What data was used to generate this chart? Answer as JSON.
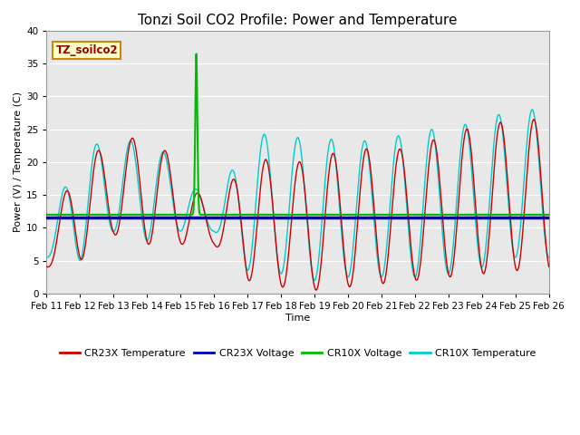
{
  "title": "Tonzi Soil CO2 Profile: Power and Temperature",
  "xlabel": "Time",
  "ylabel": "Power (V) / Temperature (C)",
  "ylim": [
    0,
    40
  ],
  "annotation_text": "TZ_soilco2",
  "annotation_bg": "#ffffcc",
  "annotation_border": "#cc8800",
  "background_color": "#e8e8e8",
  "grid_color": "white",
  "cr23x_temp_color": "#cc0000",
  "cr23x_volt_color": "#0000bb",
  "cr10x_volt_color": "#00bb00",
  "cr10x_temp_color": "#00cccc",
  "cr23x_volt_value": 11.5,
  "cr10x_volt_value": 12.0,
  "xtick_labels": [
    "Feb 11",
    "Feb 12",
    "Feb 13",
    "Feb 14",
    "Feb 15",
    "Feb 16",
    "Feb 17",
    "Feb 18",
    "Feb 19",
    "Feb 20",
    "Feb 21",
    "Feb 22",
    "Feb 23",
    "Feb 24",
    "Feb 25",
    "Feb 26"
  ],
  "title_fontsize": 11,
  "axis_label_fontsize": 8,
  "tick_fontsize": 7.5
}
